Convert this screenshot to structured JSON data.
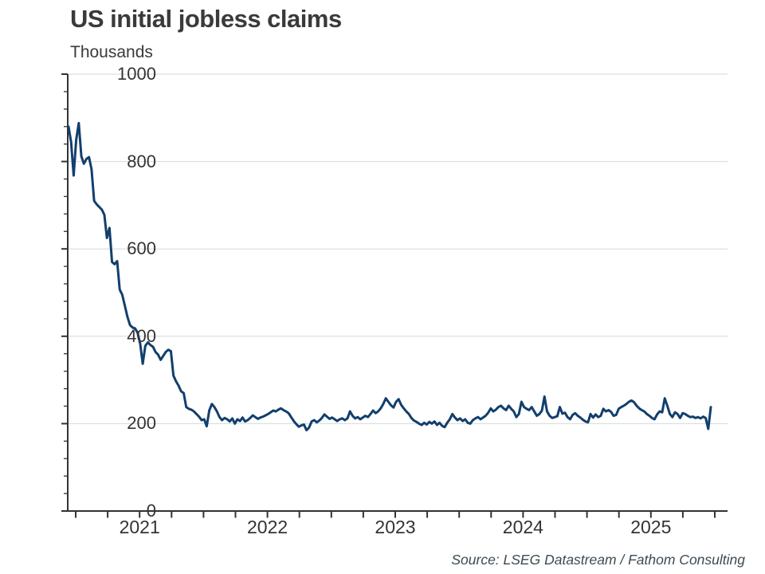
{
  "header": {
    "title": "US initial jobless claims",
    "subtitle": "Thousands"
  },
  "footer": {
    "source": "Source: LSEG Datastream / Fathom Consulting"
  },
  "colors": {
    "line": "#123f6d",
    "grid": "#d3d9d9",
    "axis": "#333333",
    "text": "#333333",
    "title": "#3a3a3a",
    "source_text": "#3d4a52"
  },
  "chart_data": {
    "type": "line",
    "title": "US initial jobless claims",
    "subtitle": "Thousands",
    "ylabel": "Thousands",
    "xlabel": "",
    "ylim": [
      0,
      1000
    ],
    "y_major_ticks": [
      0,
      200,
      400,
      600,
      800,
      1000
    ],
    "y_minor_step": 40,
    "x_year_labels": [
      "2021",
      "2022",
      "2023",
      "2024",
      "2025"
    ],
    "x_tick_interval": "quarterly",
    "x_range_note": "weekly data, Dec 2020 through Dec 2025",
    "gridlines": "horizontal-major",
    "legend": "none",
    "line_color": "#123f6d",
    "series_name": "US initial jobless claims, thousands (weekly)",
    "values": [
      880,
      845,
      768,
      850,
      888,
      812,
      795,
      806,
      810,
      782,
      710,
      702,
      696,
      690,
      678,
      625,
      648,
      570,
      565,
      572,
      507,
      495,
      470,
      445,
      426,
      420,
      418,
      408,
      383,
      337,
      378,
      386,
      380,
      376,
      364,
      358,
      346,
      355,
      364,
      369,
      366,
      310,
      297,
      287,
      274,
      270,
      238,
      234,
      232,
      228,
      222,
      216,
      208,
      210,
      194,
      230,
      245,
      238,
      228,
      215,
      208,
      213,
      210,
      205,
      212,
      200,
      210,
      206,
      214,
      205,
      208,
      213,
      219,
      215,
      211,
      214,
      216,
      219,
      222,
      226,
      230,
      228,
      232,
      235,
      231,
      228,
      224,
      215,
      206,
      199,
      193,
      196,
      198,
      185,
      191,
      205,
      208,
      203,
      207,
      213,
      221,
      216,
      211,
      214,
      210,
      206,
      210,
      212,
      208,
      212,
      228,
      218,
      212,
      215,
      210,
      214,
      218,
      215,
      222,
      230,
      224,
      228,
      235,
      245,
      258,
      250,
      242,
      237,
      250,
      256,
      243,
      235,
      228,
      222,
      213,
      207,
      204,
      200,
      197,
      202,
      198,
      204,
      200,
      205,
      197,
      202,
      195,
      192,
      202,
      210,
      222,
      214,
      208,
      212,
      206,
      210,
      202,
      200,
      208,
      212,
      215,
      210,
      214,
      218,
      225,
      235,
      228,
      232,
      238,
      241,
      235,
      231,
      241,
      234,
      228,
      215,
      222,
      250,
      238,
      234,
      231,
      238,
      228,
      218,
      222,
      230,
      262,
      228,
      218,
      213,
      215,
      217,
      238,
      223,
      225,
      215,
      210,
      220,
      224,
      218,
      214,
      209,
      205,
      203,
      222,
      214,
      221,
      215,
      218,
      234,
      228,
      231,
      227,
      218,
      220,
      234,
      238,
      241,
      245,
      250,
      253,
      249,
      241,
      235,
      231,
      228,
      222,
      218,
      213,
      210,
      221,
      228,
      226,
      258,
      241,
      222,
      215,
      226,
      222,
      213,
      224,
      222,
      218,
      215,
      216,
      213,
      215,
      212,
      216,
      213,
      188,
      238
    ]
  }
}
